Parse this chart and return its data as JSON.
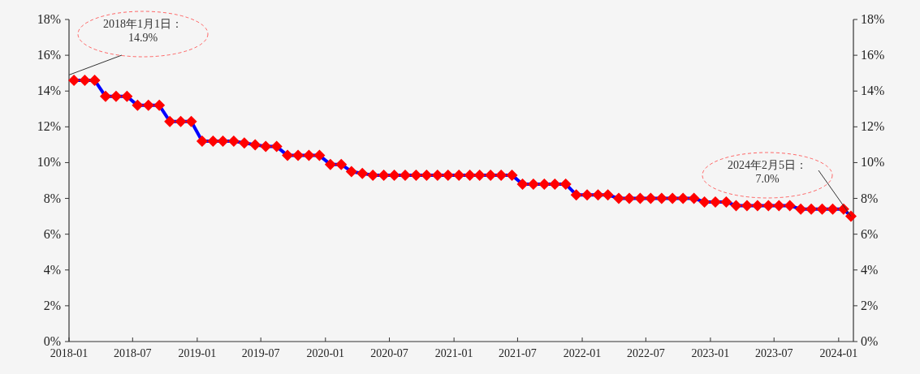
{
  "chart_data": {
    "type": "line",
    "xlim": [
      "2018-01-01",
      "2024-02-12"
    ],
    "xticks": [
      "2018-01",
      "2018-07",
      "2019-01",
      "2019-07",
      "2020-01",
      "2020-07",
      "2021-01",
      "2021-07",
      "2022-01",
      "2022-07",
      "2023-01",
      "2023-07",
      "2024-01"
    ],
    "ylim": [
      0,
      18
    ],
    "yticks": [
      {
        "value": 0,
        "label": "0%"
      },
      {
        "value": 2,
        "label": "2%"
      },
      {
        "value": 4,
        "label": "4%"
      },
      {
        "value": 6,
        "label": "6%"
      },
      {
        "value": 8,
        "label": "8%"
      },
      {
        "value": 10,
        "label": "10%"
      },
      {
        "value": 12,
        "label": "12%"
      },
      {
        "value": 14,
        "label": "14%"
      },
      {
        "value": 16,
        "label": "16%"
      },
      {
        "value": 18,
        "label": "18%"
      }
    ],
    "y2lim": [
      0,
      18
    ],
    "y2ticks": [
      {
        "value": 0,
        "label": "0%"
      },
      {
        "value": 2,
        "label": "2%"
      },
      {
        "value": 4,
        "label": "4%"
      },
      {
        "value": 6,
        "label": "6%"
      },
      {
        "value": 8,
        "label": "8%"
      },
      {
        "value": 10,
        "label": "10%"
      },
      {
        "value": 12,
        "label": "12%"
      },
      {
        "value": 14,
        "label": "14%"
      },
      {
        "value": 16,
        "label": "16%"
      },
      {
        "value": 18,
        "label": "18%"
      }
    ],
    "x": [
      "2018-01-15",
      "2018-02-15",
      "2018-03-15",
      "2018-04-15",
      "2018-05-15",
      "2018-06-15",
      "2018-07-15",
      "2018-08-15",
      "2018-09-15",
      "2018-10-15",
      "2018-11-15",
      "2018-12-15",
      "2019-01-15",
      "2019-02-15",
      "2019-03-15",
      "2019-04-15",
      "2019-05-15",
      "2019-06-15",
      "2019-07-15",
      "2019-08-15",
      "2019-09-15",
      "2019-10-15",
      "2019-11-15",
      "2019-12-15",
      "2020-01-15",
      "2020-02-15",
      "2020-03-15",
      "2020-04-15",
      "2020-05-15",
      "2020-06-15",
      "2020-07-15",
      "2020-08-15",
      "2020-09-15",
      "2020-10-15",
      "2020-11-15",
      "2020-12-15",
      "2021-01-15",
      "2021-02-15",
      "2021-03-15",
      "2021-04-15",
      "2021-05-15",
      "2021-06-15",
      "2021-07-15",
      "2021-08-15",
      "2021-09-15",
      "2021-10-15",
      "2021-11-15",
      "2021-12-15",
      "2022-01-15",
      "2022-02-15",
      "2022-03-15",
      "2022-04-15",
      "2022-05-15",
      "2022-06-15",
      "2022-07-15",
      "2022-08-15",
      "2022-09-15",
      "2022-10-15",
      "2022-11-15",
      "2022-12-15",
      "2023-01-15",
      "2023-02-15",
      "2023-03-15",
      "2023-04-15",
      "2023-05-15",
      "2023-06-15",
      "2023-07-15",
      "2023-08-15",
      "2023-09-15",
      "2023-10-15",
      "2023-11-15",
      "2023-12-15",
      "2024-01-15",
      "2024-02-05"
    ],
    "series": [
      {
        "color": "#0000ff",
        "colors": [
          "#ff0000",
          "#ff0000",
          "#ff0000",
          "#ff0000",
          "#ff0000",
          "#ff0000",
          "#ff0000",
          "#ff0000",
          "#ff0000",
          "#ff0000",
          "#ff0000",
          "#ff0000",
          "#ff0000",
          "#ff0000",
          "#ff0000",
          "#ff0000",
          "#ff0000",
          "#ff0000",
          "#ff0000",
          "#ff0000",
          "#ff0000",
          "#ff0000",
          "#ff0000",
          "#ff0000",
          "#ff0000",
          "#ff0000",
          "#ff0000",
          "#ff0000",
          "#ff0000",
          "#ff0000",
          "#ff0000",
          "#ff0000",
          "#ff0000",
          "#ff0000",
          "#ff0000",
          "#ff0000",
          "#ff0000",
          "#ff0000",
          "#ff0000",
          "#ff0000",
          "#ff0000",
          "#ff0000",
          "#ff0000",
          "#ff0000",
          "#ff0000",
          "#ff0000",
          "#ff0000",
          "#ff0000",
          "#ff0000",
          "#ff0000",
          "#ff0000",
          "#ff0000",
          "#ff0000",
          "#ff0000",
          "#ff0000",
          "#ff0000",
          "#ff0000",
          "#ff0000",
          "#ff0000",
          "#ff0000",
          "#ff0000",
          "#ff0000",
          "#ff0000",
          "#ff0000",
          "#ff0000",
          "#ff0000",
          "#ff0000",
          "#ff0000",
          "#ff0000",
          "#ff0000",
          "#ff0000",
          "#ff0000",
          "#ff0000",
          "#ff0000"
        ],
        "values": [
          14.6,
          14.6,
          14.6,
          13.7,
          13.7,
          13.7,
          13.2,
          13.2,
          13.2,
          12.3,
          12.3,
          12.3,
          11.2,
          11.2,
          11.2,
          11.2,
          11.1,
          11.0,
          10.9,
          10.9,
          10.4,
          10.4,
          10.4,
          10.4,
          9.9,
          9.9,
          9.5,
          9.4,
          9.3,
          9.3,
          9.3,
          9.3,
          9.3,
          9.3,
          9.3,
          9.3,
          9.3,
          9.3,
          9.3,
          9.3,
          9.3,
          9.3,
          8.8,
          8.8,
          8.8,
          8.8,
          8.8,
          8.2,
          8.2,
          8.2,
          8.2,
          8.0,
          8.0,
          8.0,
          8.0,
          8.0,
          8.0,
          8.0,
          8.0,
          7.8,
          7.8,
          7.8,
          7.6,
          7.6,
          7.6,
          7.6,
          7.6,
          7.6,
          7.4,
          7.4,
          7.4,
          7.4,
          7.4,
          7.0
        ]
      }
    ],
    "marker": "diamond",
    "line_style": "solid",
    "grid": false,
    "annotations": [
      {
        "text": "2018年1月1日：\n14.9%",
        "x": "2018-01-01",
        "y": 14.9
      },
      {
        "text": "2024年2月5日：\n7.0%",
        "x": "2024-02-05",
        "y": 7.0
      }
    ]
  }
}
